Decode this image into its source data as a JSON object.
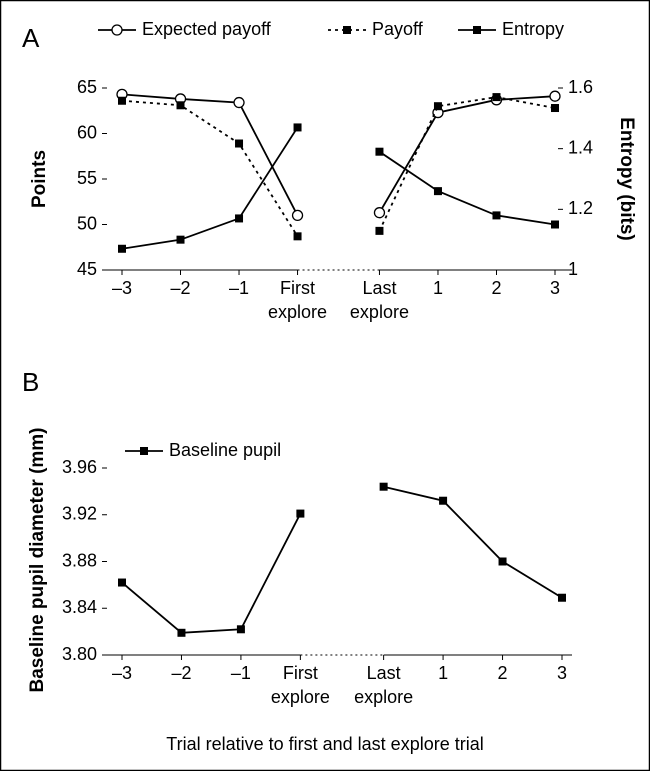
{
  "chart_data": [
    {
      "type": "line",
      "title": "A",
      "ylabel": "Points",
      "y2label": "Entropy (bits)",
      "categories": [
        "–3",
        "–2",
        "–1",
        "First explore",
        "Last explore",
        "1",
        "2",
        "3"
      ],
      "ylim": [
        45,
        65
      ],
      "yticks": [
        45,
        50,
        55,
        60,
        65
      ],
      "y2lim": [
        1,
        1.6
      ],
      "y2ticks": [
        1,
        1.2,
        1.4,
        1.6
      ],
      "series": [
        {
          "name": "Expected payoff",
          "color": "#000000",
          "marker": "circle",
          "linestyle": "solid",
          "values": [
            64.3,
            63.8,
            63.4,
            51.0,
            51.3,
            62.3,
            63.7,
            64.1
          ]
        },
        {
          "name": "Payoff",
          "color": "#000000",
          "marker": "square",
          "linestyle": "dotted",
          "values": [
            63.6,
            63.1,
            58.9,
            48.7,
            49.3,
            63.0,
            64.0,
            62.8
          ]
        },
        {
          "name": "Entropy",
          "color": "#000000",
          "marker": "square",
          "linestyle": "solid",
          "axis": "y2",
          "values": [
            1.07,
            1.1,
            1.17,
            1.47,
            1.39,
            1.26,
            1.18,
            1.15
          ]
        }
      ]
    },
    {
      "type": "line",
      "title": "B",
      "ylabel": "Baseline pupil diameter (mm)",
      "xlabel": "Trial relative to first and last explore trial",
      "categories": [
        "–3",
        "–2",
        "–1",
        "First explore",
        "Last explore",
        "1",
        "2",
        "3"
      ],
      "ylim": [
        3.8,
        3.96
      ],
      "yticks": [
        {
          "value": 3.8,
          "label": "3.80"
        },
        3.84,
        3.88,
        3.92,
        3.96
      ],
      "series": [
        {
          "name": "Baseline pupil",
          "color": "#000000",
          "marker": "square",
          "linestyle": "solid",
          "values": [
            3.862,
            3.819,
            3.822,
            3.921,
            3.944,
            3.932,
            3.88,
            3.849
          ]
        }
      ]
    }
  ]
}
